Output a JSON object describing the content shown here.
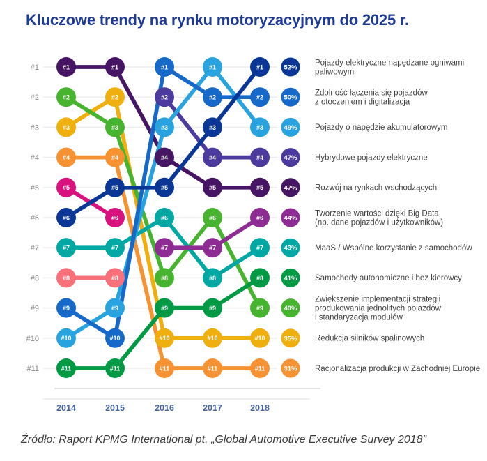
{
  "title": "Kluczowe trendy na rynku motoryzacyjnym do 2025 r.",
  "source": "Źródło: Raport KPMG International pt. „Global Automotive Executive Survey 2018”",
  "chart_data": {
    "type": "line",
    "subtype": "bump-ranking",
    "title": "Kluczowe trendy na rynku motoryzacyjnym do 2025 r.",
    "x_labels": [
      "2014",
      "2015",
      "2016",
      "2017",
      "2018"
    ],
    "rank_axis_labels": [
      "#1",
      "#2",
      "#3",
      "#4",
      "#5",
      "#6",
      "#7",
      "#8",
      "#9",
      "#10",
      "#11"
    ],
    "rank_prefix": "#",
    "grid": true,
    "legend_position": "right",
    "axis_label_color": "#8a8a8a",
    "year_label_color": "#44639c",
    "legend_text_color": "#3f3f3f",
    "series": [
      {
        "name": "Pojazdy elektryczne napędzane ogniwami paliwowymi",
        "legend_lines": [
          "Pojazdy elektryczne napędzane ogniwami",
          "paliwowymi"
        ],
        "percent": "52%",
        "color": "#0a3795",
        "ranks": [
          6,
          5,
          5,
          3,
          1
        ]
      },
      {
        "name": "Zdolność łączenia się pojazdów z otoczeniem i digitalizacja",
        "legend_lines": [
          "Zdolność łączenia się pojazdów",
          "z otoczeniem i digitalizacja"
        ],
        "percent": "50%",
        "color": "#1668c9",
        "ranks": [
          9,
          10,
          1,
          2,
          2
        ]
      },
      {
        "name": "Pojazdy o napędzie akumulatorowym",
        "legend_lines": [
          "Pojazdy o napędzie akumulatorowym"
        ],
        "percent": "49%",
        "color": "#29a3df",
        "ranks": [
          10,
          9,
          3,
          1,
          3
        ]
      },
      {
        "name": "Hybrydowe pojazdy elektryczne",
        "legend_lines": [
          "Hybrydowe pojazdy elektryczne"
        ],
        "percent": "47%",
        "color": "#4d3a9e",
        "ranks": [
          null,
          null,
          2,
          4,
          4
        ]
      },
      {
        "name": "Rozwój na rynkach wschodzących",
        "legend_lines": [
          "Rozwój na rynkach wschodzących"
        ],
        "percent": "47%",
        "color": "#461664",
        "ranks": [
          1,
          1,
          4,
          5,
          5
        ]
      },
      {
        "name": "Tworzenie wartości dzięki Big Data (np. dane pojazdów i użytkowników)",
        "legend_lines": [
          "Tworzenie wartości dzięki Big Data",
          "(np. dane pojazdów i użytkowników)"
        ],
        "percent": "44%",
        "color": "#8e2c94",
        "ranks": [
          null,
          null,
          7,
          7,
          6
        ]
      },
      {
        "name": "MaaS / Wspólne korzystanie z samochodów",
        "legend_lines": [
          "MaaS / Wspólne korzystanie z samochodów"
        ],
        "percent": "43%",
        "color": "#00a7a3",
        "ranks": [
          7,
          7,
          6,
          8,
          7
        ]
      },
      {
        "name": "Samochody autonomiczne i bez kierowcy",
        "legend_lines": [
          "Samochody autonomiczne i bez kierowcy"
        ],
        "percent": "41%",
        "color": "#009a44",
        "ranks": [
          11,
          11,
          9,
          9,
          8
        ]
      },
      {
        "name": "Zwiększenie implementacji strategii produkowania jednolitych pojazdów i standaryzacja modułów",
        "legend_lines": [
          "Zwiększenie implementacji strategii",
          "produkowania jednolitych pojazdów",
          "i standaryzacja modułów"
        ],
        "percent": "40%",
        "color": "#46b42e",
        "ranks": [
          2,
          3,
          8,
          6,
          9
        ]
      },
      {
        "name": "Redukcja silników spalinowych",
        "legend_lines": [
          "Redukcja silników spalinowych"
        ],
        "percent": "35%",
        "color": "#efaf0e",
        "ranks": [
          3,
          2,
          10,
          10,
          10
        ]
      },
      {
        "name": "Racjonalizacja produkcji w Zachodniej Europie",
        "legend_lines": [
          "Racjonalizacja produkcji w Zachodniej Europie"
        ],
        "percent": "31%",
        "color": "#f79233",
        "ranks": [
          4,
          4,
          11,
          11,
          11
        ]
      },
      {
        "name": "",
        "legend_lines": [],
        "percent": null,
        "color": "#d9117e",
        "ranks": [
          5,
          6,
          null,
          null,
          null
        ]
      },
      {
        "name": "",
        "legend_lines": [],
        "percent": null,
        "color": "#f7707a",
        "ranks": [
          8,
          8,
          null,
          null,
          null
        ]
      }
    ]
  }
}
